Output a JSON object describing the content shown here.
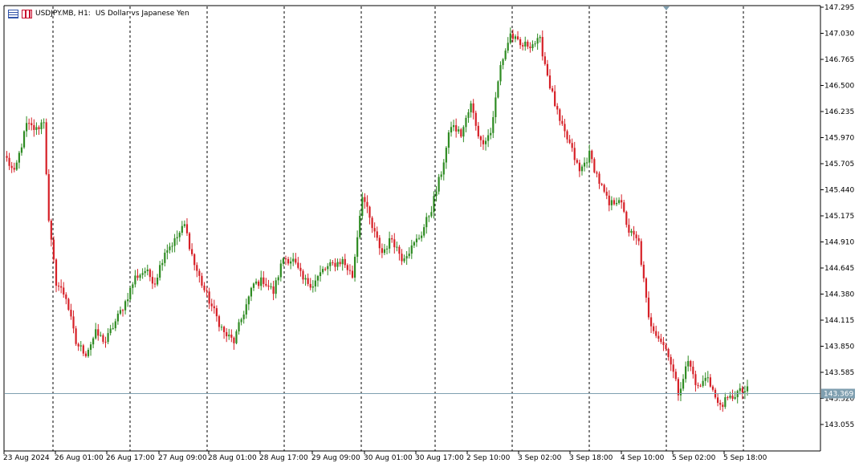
{
  "header": {
    "symbol": "USDJPY.MB, H1:",
    "description": "US Dollar vs Japanese Yen"
  },
  "colors": {
    "bull": "#2e8b22",
    "bear": "#d62027",
    "grid": "#000000",
    "axis": "#000000",
    "price_line": "#7f9fb0",
    "price_tag_bg": "#7f9fb0"
  },
  "chart_data": {
    "type": "candlestick",
    "timeframe": "H1",
    "ylim": [
      142.95,
      147.295
    ],
    "y_ticks": [
      "147.295",
      "147.030",
      "146.765",
      "146.500",
      "146.235",
      "145.970",
      "145.705",
      "145.440",
      "145.175",
      "144.910",
      "144.645",
      "144.380",
      "144.115",
      "143.850",
      "143.585",
      "143.320",
      "143.055"
    ],
    "x_ticks": [
      "23 Aug 2024",
      "26 Aug 01:00",
      "26 Aug 17:00",
      "27 Aug 09:00",
      "28 Aug 01:00",
      "28 Aug 17:00",
      "29 Aug 09:00",
      "30 Aug 01:00",
      "30 Aug 17:00",
      "2 Sep 10:00",
      "3 Sep 02:00",
      "3 Sep 18:00",
      "4 Sep 10:00",
      "5 Sep 02:00",
      "5 Sep 18:00"
    ],
    "current_price": "143.369",
    "grid": "vertical dashed",
    "anchors": [
      [
        0,
        145.75
      ],
      [
        3,
        145.6
      ],
      [
        8,
        146.1
      ],
      [
        12,
        146.05
      ],
      [
        15,
        146.15
      ],
      [
        17,
        145.1
      ],
      [
        20,
        144.5
      ],
      [
        24,
        144.35
      ],
      [
        28,
        143.88
      ],
      [
        32,
        143.78
      ],
      [
        36,
        143.98
      ],
      [
        40,
        143.9
      ],
      [
        44,
        144.1
      ],
      [
        48,
        144.3
      ],
      [
        52,
        144.55
      ],
      [
        56,
        144.62
      ],
      [
        60,
        144.5
      ],
      [
        64,
        144.82
      ],
      [
        68,
        144.92
      ],
      [
        72,
        145.08
      ],
      [
        76,
        144.68
      ],
      [
        80,
        144.42
      ],
      [
        84,
        144.2
      ],
      [
        88,
        143.98
      ],
      [
        92,
        143.9
      ],
      [
        96,
        144.2
      ],
      [
        100,
        144.48
      ],
      [
        104,
        144.52
      ],
      [
        108,
        144.4
      ],
      [
        112,
        144.75
      ],
      [
        116,
        144.72
      ],
      [
        120,
        144.52
      ],
      [
        124,
        144.48
      ],
      [
        128,
        144.62
      ],
      [
        132,
        144.68
      ],
      [
        136,
        144.72
      ],
      [
        140,
        144.56
      ],
      [
        144,
        145.4
      ],
      [
        148,
        145.05
      ],
      [
        152,
        144.8
      ],
      [
        156,
        144.95
      ],
      [
        160,
        144.75
      ],
      [
        164,
        144.85
      ],
      [
        168,
        145.0
      ],
      [
        172,
        145.25
      ],
      [
        176,
        145.62
      ],
      [
        180,
        146.1
      ],
      [
        184,
        146.0
      ],
      [
        188,
        146.3
      ],
      [
        192,
        145.92
      ],
      [
        196,
        146.02
      ],
      [
        200,
        146.7
      ],
      [
        204,
        147.02
      ],
      [
        208,
        146.9
      ],
      [
        212,
        146.92
      ],
      [
        216,
        146.95
      ],
      [
        220,
        146.5
      ],
      [
        224,
        146.12
      ],
      [
        228,
        145.9
      ],
      [
        232,
        145.62
      ],
      [
        236,
        145.8
      ],
      [
        240,
        145.52
      ],
      [
        244,
        145.28
      ],
      [
        248,
        145.36
      ],
      [
        252,
        145.02
      ],
      [
        256,
        144.9
      ],
      [
        260,
        144.12
      ],
      [
        264,
        143.95
      ],
      [
        268,
        143.78
      ],
      [
        272,
        143.38
      ],
      [
        276,
        143.7
      ],
      [
        280,
        143.42
      ],
      [
        284,
        143.55
      ],
      [
        288,
        143.25
      ],
      [
        292,
        143.3
      ],
      [
        296,
        143.38
      ],
      [
        300,
        143.4
      ]
    ]
  }
}
